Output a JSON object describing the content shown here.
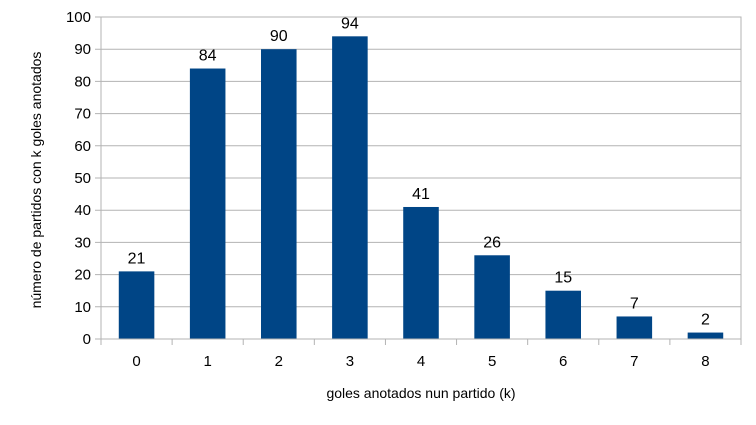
{
  "chart_data": {
    "type": "bar",
    "title": "",
    "xlabel": "goles anotados nun partido (k)",
    "ylabel": "número de partidos con k goles anotados",
    "categories": [
      "0",
      "1",
      "2",
      "3",
      "4",
      "5",
      "6",
      "7",
      "8"
    ],
    "series": [
      {
        "values": [
          21,
          84,
          90,
          94,
          41,
          26,
          15,
          7,
          2
        ]
      }
    ],
    "ylim": [
      0,
      100
    ],
    "yticks": [
      0,
      10,
      20,
      30,
      40,
      50,
      60,
      70,
      80,
      90,
      100
    ],
    "grid": true,
    "legend": "none",
    "colors": {
      "bar": "#004586",
      "grid": "#b3b3b3",
      "frame": "#b3b3b3"
    }
  }
}
